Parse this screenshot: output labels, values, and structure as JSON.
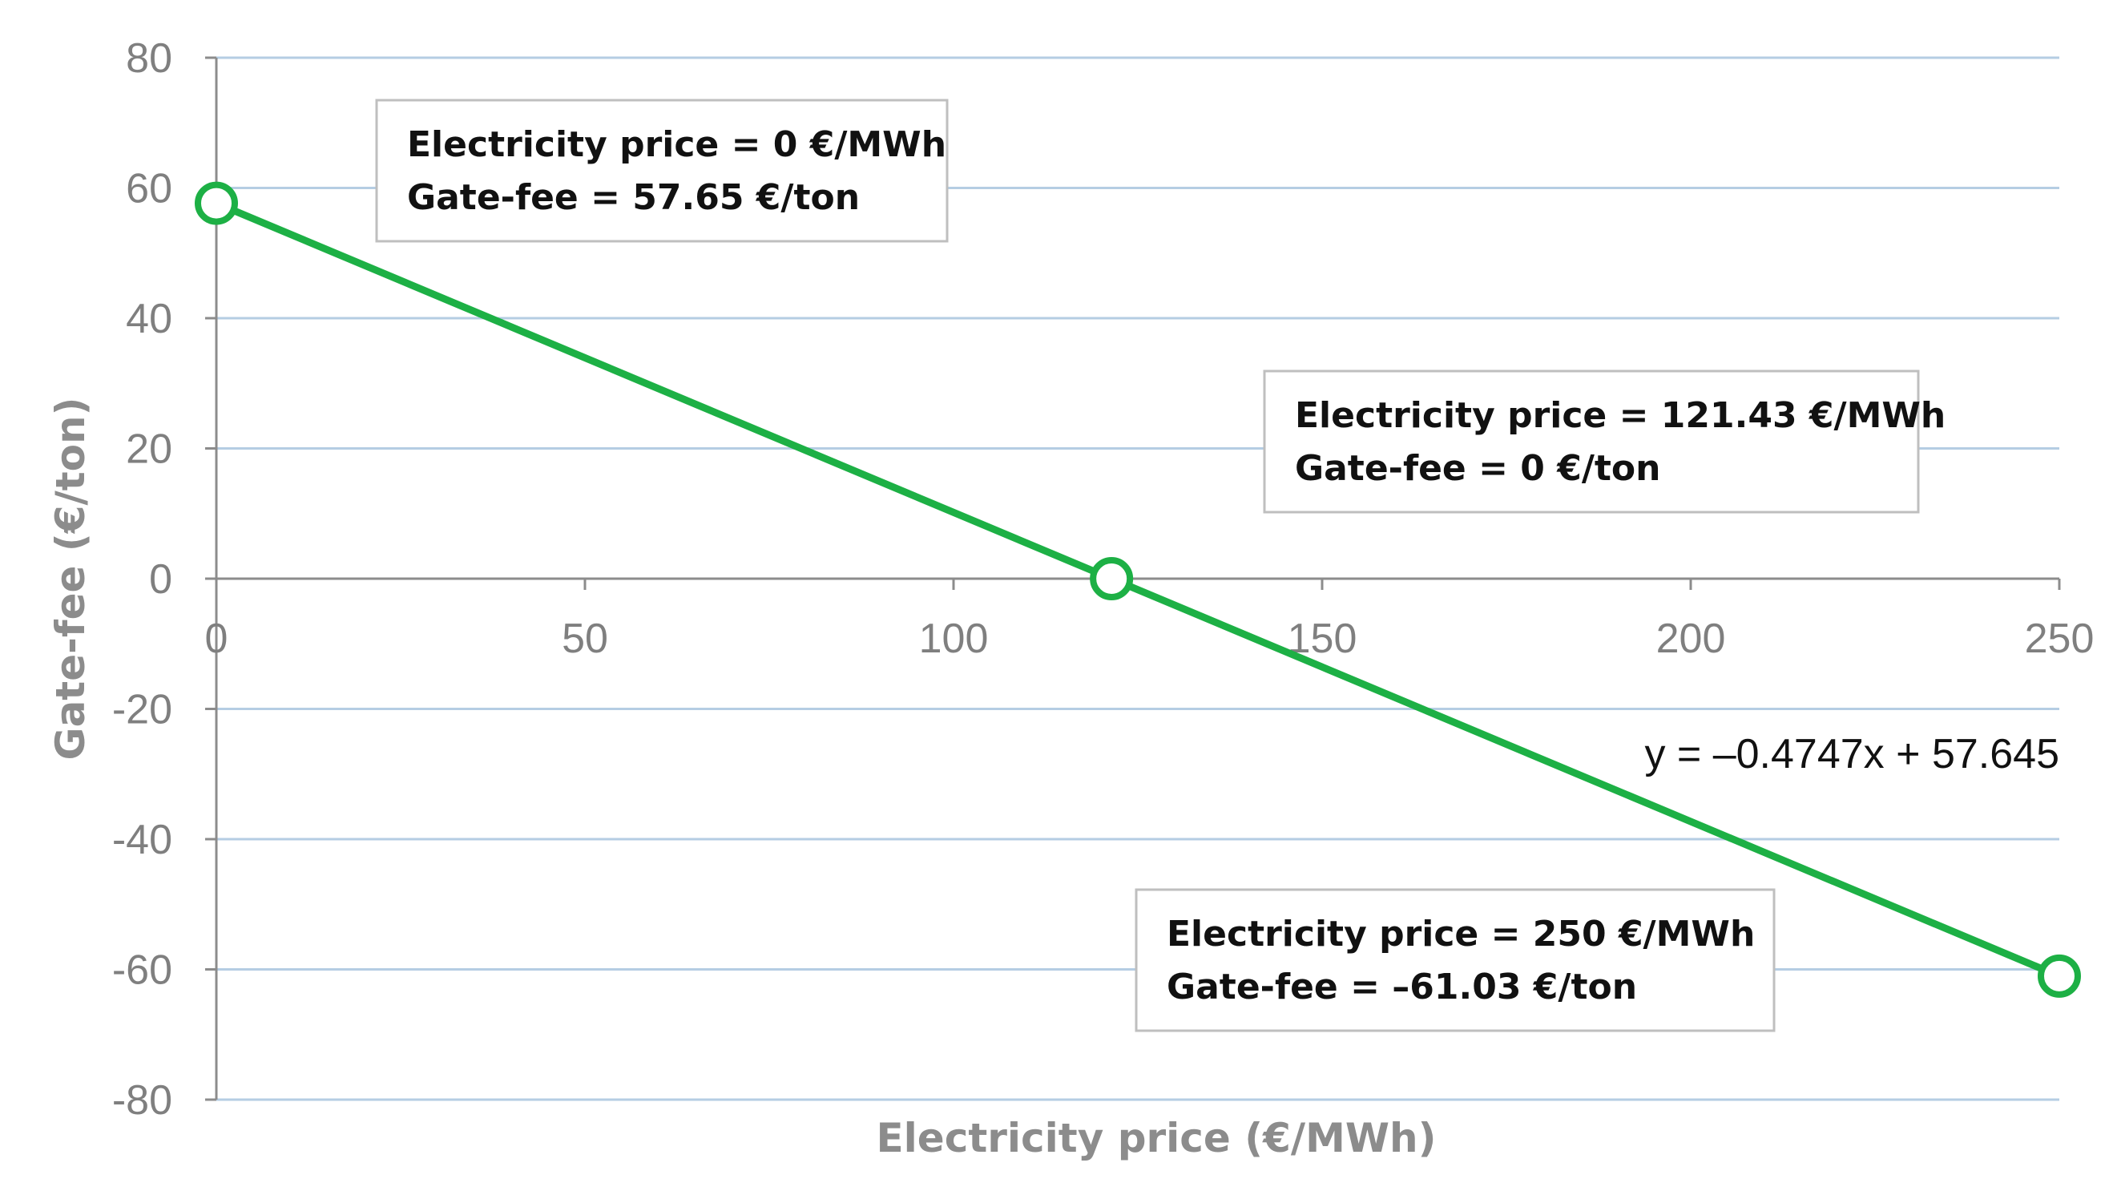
{
  "chart_data": {
    "type": "line",
    "x_label": "Electricity price (€/MWh)",
    "y_label": "Gate-fee (€/ton)",
    "xlim": [
      0,
      250
    ],
    "ylim": [
      -80,
      80
    ],
    "x_ticks": [
      "0",
      "50",
      "100",
      "150",
      "200",
      "250"
    ],
    "y_ticks": [
      "80",
      "60",
      "40",
      "20",
      "0",
      "-20",
      "-40",
      "-60",
      "-80"
    ],
    "grid": "horizontal",
    "series": [
      {
        "x": [
          0,
          250
        ],
        "y": [
          57.65,
          -61.03
        ],
        "color": "#1db045"
      }
    ],
    "markers": [
      {
        "x": 0,
        "y": 57.65
      },
      {
        "x": 121.43,
        "y": 0
      },
      {
        "x": 250,
        "y": -61.03
      }
    ],
    "annotations": [
      {
        "line1": "Electricity price = 0 €/MWh",
        "line2": "Gate-fee = 57.65 €/ton"
      },
      {
        "line1": "Electricity price = 121.43 €/MWh",
        "line2": "Gate-fee = 0 €/ton"
      },
      {
        "line1": "Electricity price = 250 €/MWh",
        "line2": "Gate-fee = –61.03 €/ton"
      }
    ],
    "equation": "y = –0.4747x + 57.645",
    "colors": {
      "line": "#1db045",
      "grid": "#b5cde3",
      "axis": "#8c8c8c",
      "text": "#7f7f7f"
    }
  }
}
